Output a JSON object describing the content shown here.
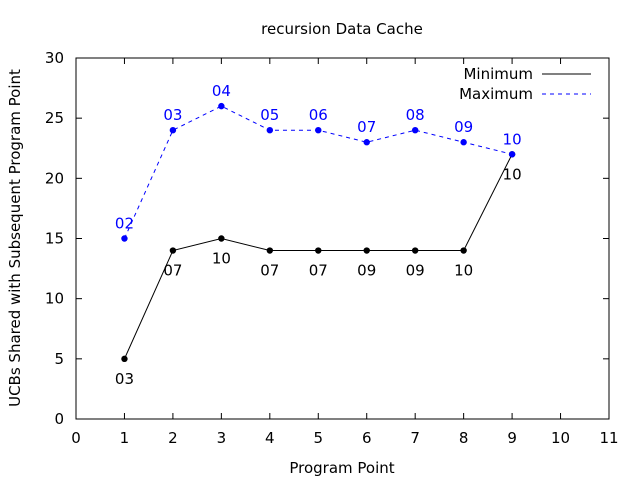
{
  "chart_data": {
    "type": "line",
    "title": "recursion Data Cache",
    "xlabel": "Program Point",
    "ylabel": "UCBs Shared with Subsequent Program Point",
    "xlim": [
      0,
      11
    ],
    "ylim": [
      0,
      30
    ],
    "xticks": [
      0,
      1,
      2,
      3,
      4,
      5,
      6,
      7,
      8,
      9,
      10,
      11
    ],
    "yticks": [
      0,
      5,
      10,
      15,
      20,
      25,
      30
    ],
    "grid": false,
    "legend_position": "top-right",
    "x": [
      1,
      2,
      3,
      4,
      5,
      6,
      7,
      8,
      9
    ],
    "series": [
      {
        "name": "Minimum",
        "line_style": "solid",
        "color": "#000000",
        "values": [
          5,
          14,
          15,
          14,
          14,
          14,
          14,
          14,
          22
        ],
        "point_labels": [
          "03",
          "07",
          "10",
          "07",
          "07",
          "09",
          "09",
          "10",
          "10"
        ],
        "label_position": "below"
      },
      {
        "name": "Maximum",
        "line_style": "dashed",
        "color": "#0000ff",
        "values": [
          15,
          24,
          26,
          24,
          24,
          23,
          24,
          23,
          22
        ],
        "point_labels": [
          "02",
          "03",
          "04",
          "05",
          "06",
          "07",
          "08",
          "09",
          "10"
        ],
        "label_position": "above"
      }
    ]
  }
}
